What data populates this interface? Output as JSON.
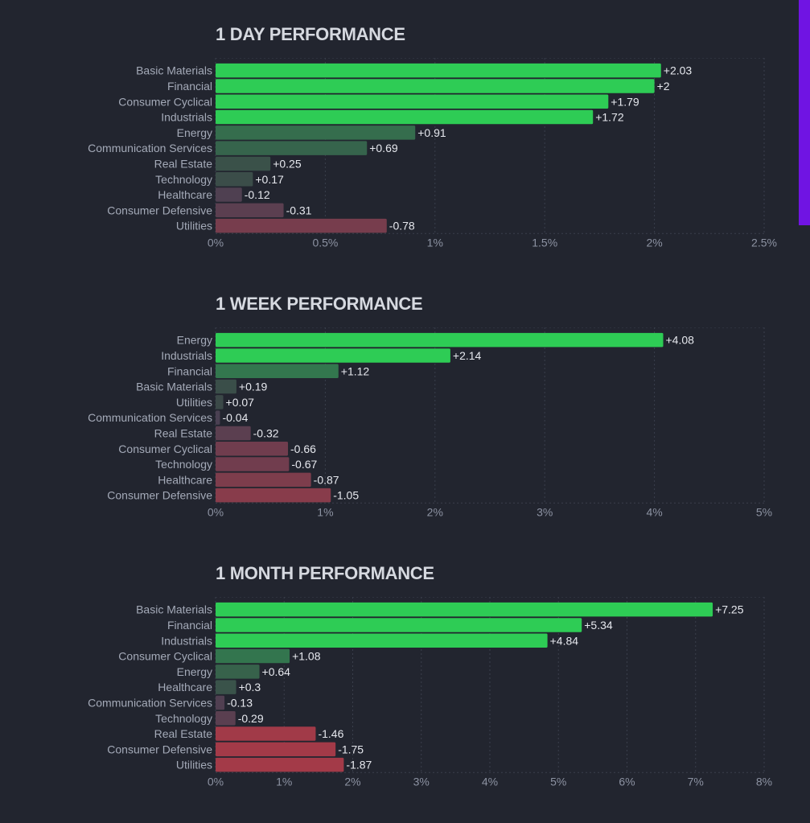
{
  "accent_colors": {
    "strong_positive": "#2ecc55",
    "negative": "#a33a48",
    "side_panel": "#7014e3"
  },
  "side_panel": {
    "icon": "promo-panel"
  },
  "chart_data": [
    {
      "type": "bar",
      "orientation": "horizontal",
      "title": "1 DAY PERFORMANCE",
      "xlabel": "",
      "ylabel": "",
      "xlim": [
        0,
        2.5
      ],
      "ticks": [
        "0%",
        "0.5%",
        "1%",
        "1.5%",
        "2%",
        "2.5%"
      ],
      "categories": [
        "Basic Materials",
        "Financial",
        "Consumer Cyclical",
        "Industrials",
        "Energy",
        "Communication Services",
        "Real Estate",
        "Technology",
        "Healthcare",
        "Consumer Defensive",
        "Utilities"
      ],
      "values": [
        2.03,
        2,
        1.79,
        1.72,
        0.91,
        0.69,
        0.25,
        0.17,
        -0.12,
        -0.31,
        -0.78
      ],
      "value_labels": [
        "+2.03",
        "+2",
        "+1.79",
        "+1.72",
        "+0.91",
        "+0.69",
        "+0.25",
        "+0.17",
        "-0.12",
        "-0.31",
        "-0.78"
      ],
      "grid": true
    },
    {
      "type": "bar",
      "orientation": "horizontal",
      "title": "1 WEEK PERFORMANCE",
      "xlabel": "",
      "ylabel": "",
      "xlim": [
        0,
        5
      ],
      "ticks": [
        "0%",
        "1%",
        "2%",
        "3%",
        "4%",
        "5%"
      ],
      "categories": [
        "Energy",
        "Industrials",
        "Financial",
        "Basic Materials",
        "Utilities",
        "Communication Services",
        "Real Estate",
        "Consumer Cyclical",
        "Technology",
        "Healthcare",
        "Consumer Defensive"
      ],
      "values": [
        4.08,
        2.14,
        1.12,
        0.19,
        0.07,
        -0.04,
        -0.32,
        -0.66,
        -0.67,
        -0.87,
        -1.05
      ],
      "value_labels": [
        "+4.08",
        "+2.14",
        "+1.12",
        "+0.19",
        "+0.07",
        "-0.04",
        "-0.32",
        "-0.66",
        "-0.67",
        "-0.87",
        "-1.05"
      ],
      "grid": true
    },
    {
      "type": "bar",
      "orientation": "horizontal",
      "title": "1 MONTH PERFORMANCE",
      "xlabel": "",
      "ylabel": "",
      "xlim": [
        0,
        8
      ],
      "ticks": [
        "0%",
        "1%",
        "2%",
        "3%",
        "4%",
        "5%",
        "6%",
        "7%",
        "8%"
      ],
      "categories": [
        "Basic Materials",
        "Financial",
        "Industrials",
        "Consumer Cyclical",
        "Energy",
        "Healthcare",
        "Communication Services",
        "Technology",
        "Real Estate",
        "Consumer Defensive",
        "Utilities"
      ],
      "values": [
        7.25,
        5.34,
        4.84,
        1.08,
        0.64,
        0.3,
        -0.13,
        -0.29,
        -1.46,
        -1.75,
        -1.87
      ],
      "value_labels": [
        "+7.25",
        "+5.34",
        "+4.84",
        "+1.08",
        "+0.64",
        "+0.3",
        "-0.13",
        "-0.29",
        "-1.46",
        "-1.75",
        "-1.87"
      ],
      "grid": true
    }
  ]
}
